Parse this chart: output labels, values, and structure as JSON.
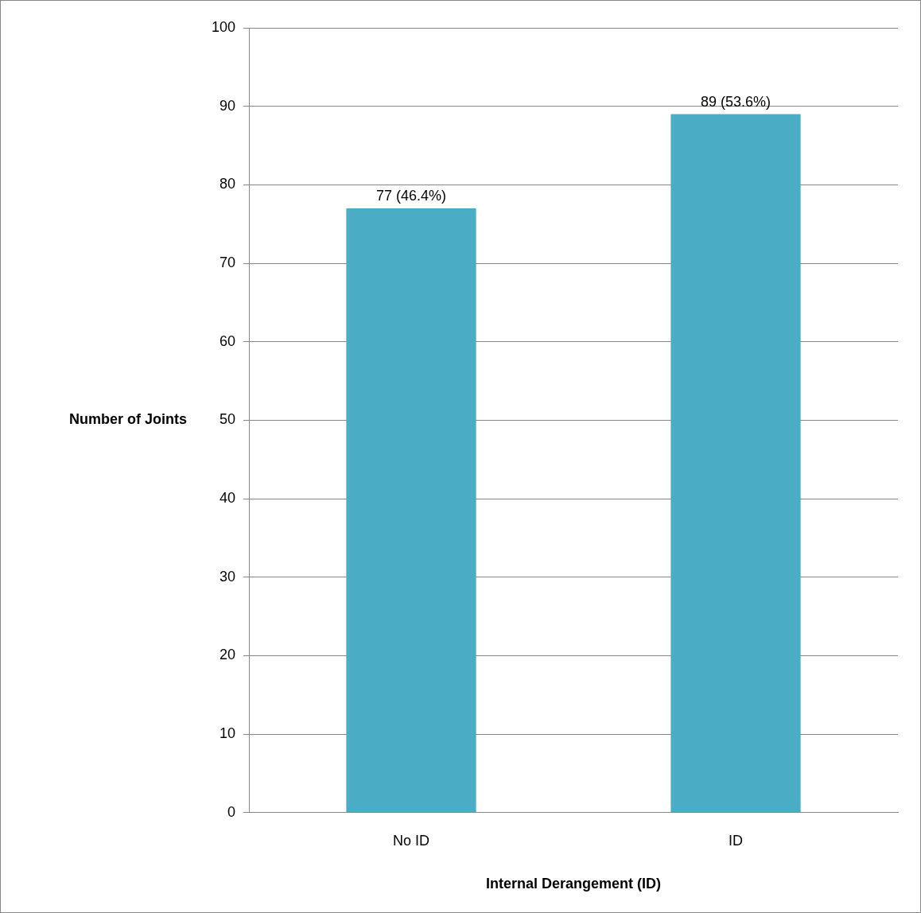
{
  "chart_data": {
    "type": "bar",
    "xlabel": "Internal Derangement (ID)",
    "ylabel": "Number of Joints",
    "categories": [
      "No ID",
      "ID"
    ],
    "values": [
      77,
      89
    ],
    "color": "#4bacc6",
    "value_labels": [
      "77 (46.4%)",
      "89 (53.6%)"
    ],
    "ylim": [
      0,
      100
    ],
    "yticks": [
      0,
      10,
      20,
      30,
      40,
      50,
      60,
      70,
      80,
      90,
      100
    ],
    "grid": "y",
    "legend": false
  }
}
